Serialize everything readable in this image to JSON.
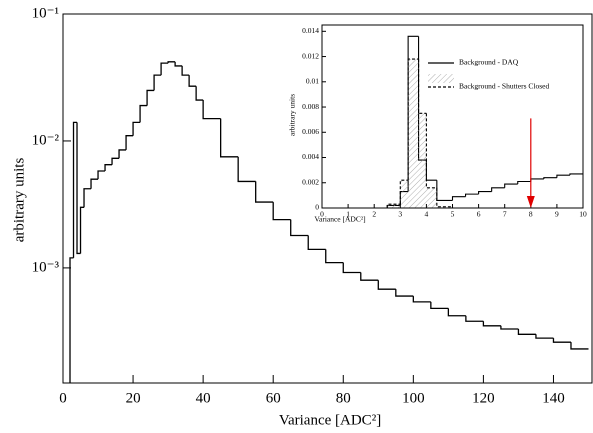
{
  "chart_data": [
    {
      "type": "histogram",
      "xlabel": "Variance [ADC²]",
      "ylabel": "arbitrary units",
      "log_y": true,
      "color": "#000000",
      "bins": [
        0,
        2,
        3,
        4,
        5,
        6,
        8,
        10,
        12,
        14,
        16,
        18,
        20,
        22,
        24,
        26,
        28,
        30,
        32,
        34,
        36,
        38,
        40,
        45,
        50,
        55,
        60,
        65,
        70,
        75,
        80,
        85,
        90,
        95,
        100,
        105,
        110,
        115,
        120,
        125,
        130,
        135,
        140,
        145,
        150
      ],
      "values": [
        0.0001,
        0.0012,
        0.014,
        0.0013,
        0.003,
        0.0042,
        0.005,
        0.0058,
        0.0065,
        0.0073,
        0.0085,
        0.011,
        0.014,
        0.019,
        0.025,
        0.033,
        0.041,
        0.042,
        0.039,
        0.033,
        0.027,
        0.021,
        0.015,
        0.0075,
        0.0048,
        0.0033,
        0.0024,
        0.0018,
        0.0014,
        0.0011,
        0.00092,
        0.0008,
        0.00068,
        0.0006,
        0.00054,
        0.00048,
        0.00042,
        0.00038,
        0.00035,
        0.00033,
        0.0003,
        0.00028,
        0.00026,
        0.00023
      ],
      "xlim": [
        0,
        151
      ],
      "xticks": [
        0,
        20,
        40,
        60,
        80,
        100,
        120,
        140
      ],
      "ylim": [
        0.000124,
        0.1
      ],
      "yticks": [
        {
          "value": 0.001,
          "label": "10⁻³"
        },
        {
          "value": 0.01,
          "label": "10⁻²"
        },
        {
          "value": 0.1,
          "label": "10⁻¹"
        }
      ]
    },
    {
      "type": "histogram",
      "xlabel": "Variance [ADC²]",
      "ylabel": "arbitrary units",
      "bins": [
        0,
        2.5,
        3,
        3.3,
        3.7,
        4,
        4.4,
        5,
        5.5,
        6,
        6.5,
        7,
        7.5,
        8,
        8.5,
        9,
        9.5,
        10
      ],
      "series": [
        {
          "name": "Background - DAQ",
          "color": "#000000",
          "dash": false,
          "values": [
            0,
            0.0002,
            0.0013,
            0.0136,
            0.0038,
            0.0022,
            0.0006,
            0.0009,
            0.0011,
            0.0013,
            0.0016,
            0.0019,
            0.0021,
            0.0023,
            0.0024,
            0.0026,
            0.0027
          ]
        },
        {
          "name": "Background - Shutters Closed",
          "color": "#000000",
          "dash": true,
          "hatch": true,
          "values": [
            0,
            0.0003,
            0.0022,
            0.0118,
            0.0075,
            0.0016,
            0.0001,
            0,
            0,
            0,
            0,
            0,
            0,
            0,
            0,
            0,
            0
          ]
        }
      ],
      "xlim": [
        0,
        10
      ],
      "xticks": [
        0,
        1,
        2,
        3,
        4,
        5,
        6,
        7,
        8,
        9,
        10
      ],
      "ylim": [
        0,
        0.0145
      ],
      "yticks": [
        0,
        0.002,
        0.004,
        0.006,
        0.008,
        0.01,
        0.012,
        0.014
      ],
      "arrow": {
        "x": 8,
        "y_top": 0.0071,
        "color": "#e00000"
      }
    }
  ]
}
